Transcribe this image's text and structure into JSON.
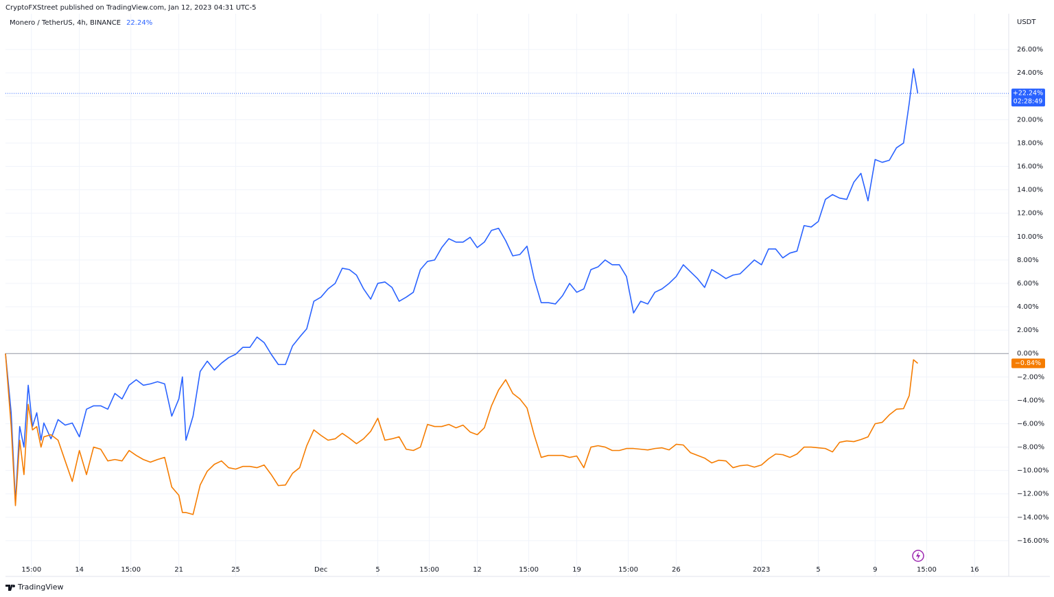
{
  "chart_data": {
    "type": "line",
    "title": "CryptoFXStreet published on TradingView.com, Jan 12, 2023 04:31 UTC-5",
    "header_value": "22.24%",
    "y_unit": "USDT",
    "countdown": "02:28:49",
    "footer": "TradingView",
    "grid": true,
    "zero_line": 0,
    "xlim": [
      -5.2,
      65.4
    ],
    "xticks": [
      {
        "value": -3.375,
        "label": "15:00"
      },
      {
        "value": 0,
        "label": "14"
      },
      {
        "value": 3.625,
        "label": "15:00"
      },
      {
        "value": 7,
        "label": "21"
      },
      {
        "value": 11,
        "label": "25"
      },
      {
        "value": 17,
        "label": "Dec"
      },
      {
        "value": 21,
        "label": "5"
      },
      {
        "value": 24.625,
        "label": "15:00"
      },
      {
        "value": 28,
        "label": "12"
      },
      {
        "value": 31.625,
        "label": "15:00"
      },
      {
        "value": 35,
        "label": "19"
      },
      {
        "value": 38.625,
        "label": "15:00"
      },
      {
        "value": 42,
        "label": "26"
      },
      {
        "value": 48,
        "label": "2023"
      },
      {
        "value": 52,
        "label": "5"
      },
      {
        "value": 56,
        "label": "9"
      },
      {
        "value": 59.625,
        "label": "15:00"
      },
      {
        "value": 63,
        "label": "16"
      }
    ],
    "ylim": [
      -18,
      28
    ],
    "yticks": [
      {
        "value": -16,
        "label": "−16.00%"
      },
      {
        "value": -14,
        "label": "−14.00%"
      },
      {
        "value": -12,
        "label": "−12.00%"
      },
      {
        "value": -10,
        "label": "−10.00%"
      },
      {
        "value": -8,
        "label": "−8.00%"
      },
      {
        "value": -6,
        "label": "−6.00%"
      },
      {
        "value": -4,
        "label": "−4.00%"
      },
      {
        "value": -2,
        "label": "−2.00%"
      },
      {
        "value": 0,
        "label": "0.00%"
      },
      {
        "value": 2,
        "label": "2.00%"
      },
      {
        "value": 4,
        "label": "4.00%"
      },
      {
        "value": 6,
        "label": "6.00%"
      },
      {
        "value": 8,
        "label": "8.00%"
      },
      {
        "value": 10,
        "label": "10.00%"
      },
      {
        "value": 12,
        "label": "12.00%"
      },
      {
        "value": 14,
        "label": "14.00%"
      },
      {
        "value": 16,
        "label": "16.00%"
      },
      {
        "value": 18,
        "label": "18.00%"
      },
      {
        "value": 20,
        "label": "20.00%"
      },
      {
        "value": 22,
        "label": "22.00%"
      },
      {
        "value": 24,
        "label": "24.00%"
      },
      {
        "value": 26,
        "label": "26.00%"
      }
    ],
    "x": [
      -5.2,
      -4.8,
      -4.5,
      -4.2,
      -3.9,
      -3.6,
      -3.3,
      -3.0,
      -2.7,
      -2.5,
      -2.0,
      -1.5,
      -1.0,
      -0.5,
      0,
      0.5,
      1.0,
      1.5,
      2.0,
      2.5,
      3.0,
      3.5,
      4.0,
      4.5,
      5.0,
      5.5,
      6.0,
      6.5,
      7.0,
      7.25,
      7.5,
      8.0,
      8.5,
      9.0,
      9.5,
      10.0,
      10.5,
      11.0,
      11.5,
      12.0,
      12.5,
      13.0,
      13.5,
      14.0,
      14.5,
      15.0,
      15.5,
      16.0,
      16.5,
      17.0,
      17.5,
      18.0,
      18.5,
      19.0,
      19.5,
      20.0,
      20.5,
      21.0,
      21.5,
      22.0,
      22.5,
      23.0,
      23.5,
      24.0,
      24.5,
      25.0,
      25.5,
      26.0,
      26.5,
      27.0,
      27.5,
      28.0,
      28.5,
      29.0,
      29.5,
      30.0,
      30.5,
      31.0,
      31.5,
      32.0,
      32.5,
      33.0,
      33.5,
      34.0,
      34.5,
      35.0,
      35.5,
      36.0,
      36.5,
      37.0,
      37.5,
      38.0,
      38.5,
      39.0,
      39.5,
      40.0,
      40.5,
      41.0,
      41.5,
      42.0,
      42.5,
      43.0,
      43.5,
      44.0,
      44.5,
      45.0,
      45.5,
      46.0,
      46.5,
      47.0,
      47.5,
      48.0,
      48.5,
      49.0,
      49.5,
      50.0,
      50.5,
      51.0,
      51.5,
      52.0,
      52.5,
      53.0,
      53.5,
      54.0,
      54.5,
      55.0,
      55.5,
      56.0,
      56.5,
      57.0,
      57.5,
      58.0,
      58.4,
      58.7,
      59.0
    ],
    "series": [
      {
        "name": "Monero / TetherUS, 4h, BINANCE",
        "color": "#2962ff",
        "last_label": "+22.24%",
        "values": [
          0,
          -5.06,
          -12.71,
          -6.24,
          -8.0,
          -2.71,
          -6.24,
          -5.06,
          -7.41,
          -5.94,
          -7.29,
          -5.65,
          -6.12,
          -5.94,
          -7.12,
          -4.76,
          -4.47,
          -4.47,
          -4.76,
          -3.41,
          -3.88,
          -2.71,
          -2.24,
          -2.71,
          -2.59,
          -2.41,
          -2.59,
          -5.35,
          -3.88,
          -2.0,
          -7.41,
          -5.35,
          -1.53,
          -0.65,
          -1.41,
          -0.82,
          -0.35,
          -0.06,
          0.53,
          0.53,
          1.41,
          0.94,
          -0.06,
          -0.94,
          -0.94,
          0.65,
          1.41,
          2.12,
          4.47,
          4.82,
          5.53,
          6.0,
          7.29,
          7.18,
          6.71,
          5.53,
          4.65,
          6.0,
          6.12,
          5.65,
          4.47,
          4.82,
          5.24,
          7.18,
          7.88,
          8.0,
          9.06,
          9.82,
          9.53,
          9.53,
          9.94,
          9.06,
          9.53,
          10.53,
          10.71,
          9.65,
          8.35,
          8.47,
          9.18,
          6.41,
          4.35,
          4.35,
          4.24,
          4.94,
          6.0,
          5.24,
          5.53,
          7.18,
          7.41,
          8.0,
          7.59,
          7.59,
          6.59,
          3.47,
          4.47,
          4.24,
          5.24,
          5.53,
          6.0,
          6.59,
          7.59,
          7.0,
          6.41,
          5.65,
          7.18,
          6.82,
          6.41,
          6.71,
          6.82,
          7.41,
          8.0,
          7.59,
          8.94,
          8.94,
          8.18,
          8.59,
          8.76,
          10.94,
          10.82,
          11.29,
          13.18,
          13.59,
          13.29,
          13.18,
          14.65,
          15.41,
          13.06,
          16.59,
          16.35,
          16.53,
          17.59,
          18.0,
          21.41,
          24.35,
          22.24
        ]
      },
      {
        "color": "#f57c00",
        "last_label": "−0.84%",
        "values": [
          0,
          -6.24,
          -13.0,
          -7.41,
          -10.35,
          -4.35,
          -6.53,
          -6.24,
          -8.0,
          -7.12,
          -6.94,
          -7.41,
          -9.18,
          -10.94,
          -8.29,
          -10.35,
          -8.0,
          -8.18,
          -9.18,
          -9.06,
          -9.18,
          -8.29,
          -8.71,
          -9.06,
          -9.29,
          -9.06,
          -8.88,
          -11.41,
          -12.12,
          -13.59,
          -13.59,
          -13.76,
          -11.24,
          -10.06,
          -9.47,
          -9.18,
          -9.76,
          -9.88,
          -9.65,
          -9.65,
          -9.76,
          -9.53,
          -10.35,
          -11.29,
          -11.24,
          -10.24,
          -9.76,
          -7.88,
          -6.53,
          -7.0,
          -7.41,
          -7.29,
          -6.82,
          -7.24,
          -7.71,
          -7.29,
          -6.65,
          -5.53,
          -7.41,
          -7.29,
          -7.12,
          -8.18,
          -8.29,
          -8.0,
          -6.06,
          -6.24,
          -6.24,
          -6.06,
          -6.35,
          -6.12,
          -6.71,
          -6.94,
          -6.35,
          -4.47,
          -3.12,
          -2.24,
          -3.41,
          -3.88,
          -4.65,
          -6.94,
          -8.88,
          -8.71,
          -8.71,
          -8.71,
          -8.88,
          -8.76,
          -9.76,
          -8.0,
          -7.88,
          -8.0,
          -8.29,
          -8.29,
          -8.12,
          -8.12,
          -8.18,
          -8.24,
          -8.12,
          -8.06,
          -8.24,
          -7.76,
          -7.82,
          -8.47,
          -8.71,
          -8.94,
          -9.35,
          -9.12,
          -9.18,
          -9.76,
          -9.59,
          -9.53,
          -9.71,
          -9.53,
          -9.0,
          -8.59,
          -8.65,
          -8.88,
          -8.59,
          -8.0,
          -8.0,
          -8.06,
          -8.12,
          -8.41,
          -7.59,
          -7.47,
          -7.53,
          -7.35,
          -7.12,
          -6.0,
          -5.88,
          -5.24,
          -4.76,
          -4.71,
          -3.59,
          -0.53,
          -0.84
        ]
      }
    ]
  }
}
